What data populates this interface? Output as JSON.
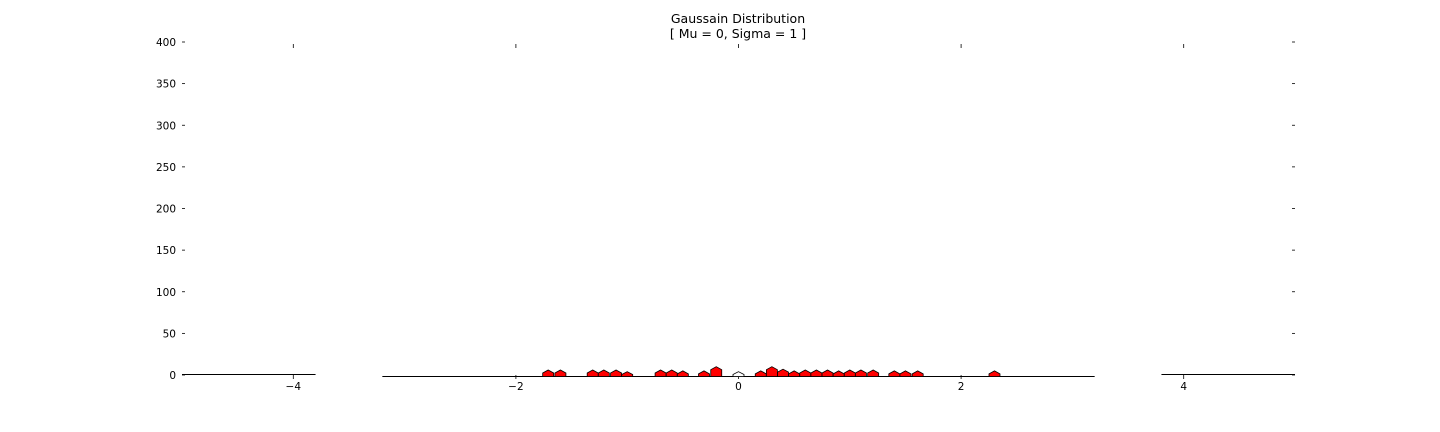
{
  "chart_data": {
    "type": "bar",
    "title": "Gaussain Distribution",
    "subtitle": "[ Mu = 0, Sigma = 1 ]",
    "xlabel": "",
    "ylabel": "",
    "xlim": [
      -5,
      5
    ],
    "ylim": [
      0,
      400
    ],
    "xticks": [
      {
        "value": -4,
        "label": "−4"
      },
      {
        "value": -2,
        "label": "−2"
      },
      {
        "value": 0,
        "label": "0"
      },
      {
        "value": 2,
        "label": "2"
      },
      {
        "value": 4,
        "label": "4"
      }
    ],
    "yticks": [
      {
        "value": 0,
        "label": "0"
      },
      {
        "value": 50,
        "label": "50"
      },
      {
        "value": 100,
        "label": "100"
      },
      {
        "value": 150,
        "label": "150"
      },
      {
        "value": 200,
        "label": "200"
      },
      {
        "value": 250,
        "label": "250"
      },
      {
        "value": 300,
        "label": "300"
      },
      {
        "value": 350,
        "label": "350"
      },
      {
        "value": 400,
        "label": "400"
      }
    ],
    "grid": false,
    "bar_color": "#ff0000",
    "bar_edge_color": "#000000",
    "bars": [
      {
        "x": -1.71,
        "value": 6
      },
      {
        "x": -1.6,
        "value": 6
      },
      {
        "x": -1.31,
        "value": 6
      },
      {
        "x": -1.21,
        "value": 6
      },
      {
        "x": -1.1,
        "value": 6
      },
      {
        "x": -1.0,
        "value": 4
      },
      {
        "x": -0.7,
        "value": 6
      },
      {
        "x": -0.6,
        "value": 6
      },
      {
        "x": -0.5,
        "value": 5
      },
      {
        "x": -0.31,
        "value": 5
      },
      {
        "x": -0.2,
        "value": 10
      },
      {
        "x": 0.0,
        "value": 4
      },
      {
        "x": 0.2,
        "value": 5
      },
      {
        "x": 0.3,
        "value": 10
      },
      {
        "x": 0.4,
        "value": 7
      },
      {
        "x": 0.5,
        "value": 5
      },
      {
        "x": 0.6,
        "value": 6
      },
      {
        "x": 0.7,
        "value": 6
      },
      {
        "x": 0.8,
        "value": 6
      },
      {
        "x": 0.9,
        "value": 5
      },
      {
        "x": 1.0,
        "value": 6
      },
      {
        "x": 1.1,
        "value": 6
      },
      {
        "x": 1.21,
        "value": 6
      },
      {
        "x": 1.4,
        "value": 5
      },
      {
        "x": 1.5,
        "value": 5
      },
      {
        "x": 1.61,
        "value": 5
      },
      {
        "x": 2.3,
        "value": 5
      }
    ]
  }
}
